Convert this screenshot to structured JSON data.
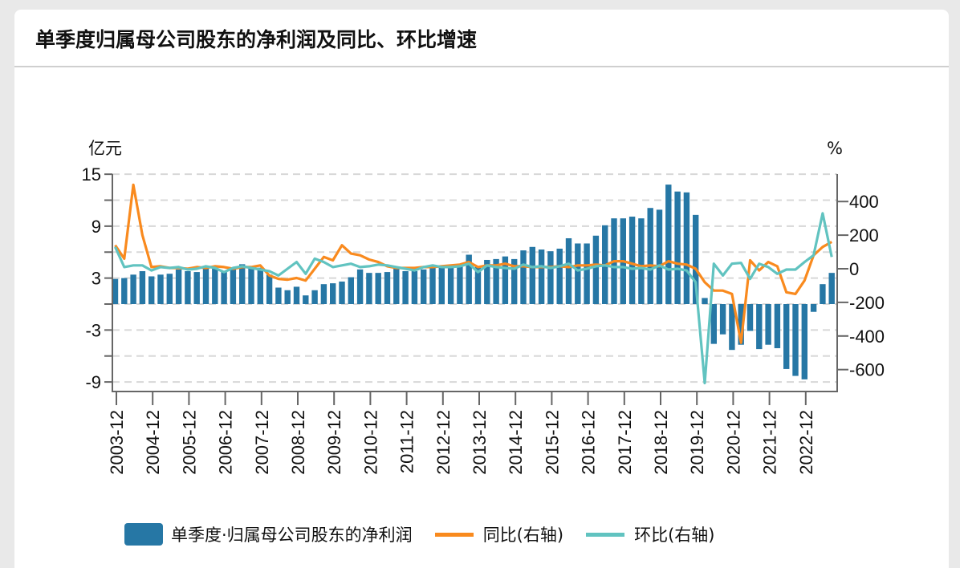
{
  "header": {
    "title": "单季度归属母公司股东的净利润及同比、环比增速"
  },
  "colors": {
    "bar": "#2677a5",
    "yoy": "#f98a1e",
    "qoq": "#61c3c0",
    "grid": "#d8d8d8",
    "axis": "#666666"
  },
  "chart_data": {
    "type": "bar+line",
    "title": "单季度归属母公司股东的净利润及同比、环比增速",
    "left_axis": {
      "unit": "亿元",
      "ticks": [
        "15",
        "9",
        "3",
        "-3",
        "-9"
      ],
      "tick_values": [
        15,
        9,
        3,
        -3,
        -9
      ],
      "range": [
        -10,
        15
      ],
      "grid_step": 3
    },
    "right_axis": {
      "unit": "%",
      "ticks": [
        "400",
        "200",
        "0",
        "-200",
        "-400",
        "-600"
      ],
      "tick_values": [
        400,
        200,
        0,
        -200,
        -400,
        -600
      ]
    },
    "x_tick_labels": [
      "2003-12",
      "2004-12",
      "2005-12",
      "2006-12",
      "2007-12",
      "2008-12",
      "2009-12",
      "2010-12",
      "2011-12",
      "2012-12",
      "2013-12",
      "2014-12",
      "2015-12",
      "2016-12",
      "2017-12",
      "2018-12",
      "2019-12",
      "2020-12",
      "2021-12",
      "2022-12"
    ],
    "first_period": "2003-12",
    "grid": true,
    "legend_position": "bottom",
    "legend": [
      "单季度·归属母公司股东的净利润",
      "同比(右轴)",
      "环比(右轴)"
    ],
    "series": [
      {
        "name": "单季度·归属母公司股东的净利润",
        "type": "bar",
        "axis": "left",
        "values": [
          2.9,
          3.0,
          3.4,
          3.8,
          3.2,
          3.4,
          3.5,
          4.0,
          3.8,
          3.7,
          4.2,
          4.4,
          3.8,
          4.1,
          4.6,
          4.4,
          4.2,
          3.4,
          1.9,
          1.6,
          2.0,
          1.0,
          1.6,
          2.3,
          2.4,
          2.6,
          3.1,
          4.0,
          3.6,
          3.6,
          3.7,
          4.2,
          3.8,
          3.8,
          4.0,
          4.3,
          4.3,
          4.3,
          4.5,
          5.7,
          4.3,
          5.1,
          5.2,
          5.5,
          5.2,
          6.2,
          6.6,
          6.3,
          6.1,
          6.4,
          7.6,
          7.0,
          7.0,
          7.9,
          9.1,
          9.9,
          9.9,
          10.1,
          9.9,
          11.1,
          10.9,
          13.8,
          13.0,
          12.9,
          10.3,
          0.7,
          -4.6,
          -3.5,
          -5.3,
          -4.7,
          -3.1,
          -5.2,
          -4.7,
          -5.1,
          -7.5,
          -8.3,
          -8.7,
          -0.9,
          2.3,
          3.6
        ]
      },
      {
        "name": "同比(右轴)",
        "type": "line",
        "axis": "right",
        "values": [
          140,
          60,
          500,
          200,
          10,
          15,
          5,
          5,
          0,
          10,
          5,
          15,
          10,
          0,
          10,
          10,
          20,
          -40,
          -60,
          -65,
          -55,
          -70,
          0,
          70,
          50,
          140,
          90,
          80,
          55,
          40,
          15,
          5,
          5,
          5,
          10,
          10,
          15,
          20,
          25,
          40,
          10,
          20,
          20,
          30,
          15,
          15,
          10,
          10,
          10,
          15,
          10,
          20,
          20,
          25,
          20,
          45,
          45,
          30,
          15,
          20,
          15,
          45,
          30,
          25,
          0,
          -80,
          -130,
          -130,
          -150,
          -440,
          50,
          -10,
          40,
          15,
          -140,
          -150,
          -70,
          80,
          130,
          160
        ]
      },
      {
        "name": "环比(右轴)",
        "type": "line",
        "axis": "right",
        "values": [
          130,
          10,
          20,
          20,
          -10,
          10,
          5,
          10,
          -5,
          0,
          15,
          5,
          -20,
          5,
          15,
          5,
          -5,
          -15,
          -40,
          0,
          40,
          -30,
          60,
          40,
          10,
          20,
          30,
          10,
          15,
          25,
          20,
          10,
          0,
          -10,
          10,
          20,
          10,
          10,
          15,
          30,
          -20,
          20,
          10,
          5,
          0,
          25,
          10,
          15,
          5,
          15,
          30,
          -10,
          0,
          15,
          20,
          10,
          10,
          0,
          5,
          -5,
          20,
          -5,
          0,
          -10,
          -80,
          -680,
          30,
          -40,
          30,
          35,
          -60,
          30,
          10,
          -30,
          -5,
          -5,
          40,
          80,
          330,
          70
        ]
      }
    ]
  },
  "legend": {
    "bar_label": "单季度·归属母公司股东的净利润",
    "yoy_label": "同比(右轴)",
    "qoq_label": "环比(右轴)"
  }
}
